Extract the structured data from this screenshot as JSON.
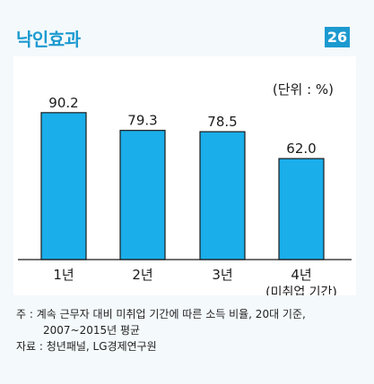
{
  "title": "낙인효과",
  "badge": "26",
  "chart_data": {
    "type": "bar",
    "categories": [
      "1년",
      "2년",
      "3년",
      "4년"
    ],
    "category_sublabels": [
      "",
      "",
      "",
      "(미취업 기간)"
    ],
    "values": [
      90.2,
      79.3,
      78.5,
      62.0
    ],
    "value_labels": [
      "90.2",
      "79.3",
      "78.5",
      "62.0"
    ],
    "unit_label": "(단위 : %)",
    "ylim": [
      0,
      100
    ],
    "grid": false,
    "bar_color": "#1aaeea",
    "bar_edge_color": "#1b1b1b"
  },
  "notes": {
    "note": "주 : 계속 근무자 대비 미취업 기간에 따른 소득 비율, 20대 기준, 2007~2015년 평균",
    "source": "자료 : 청년패널, LG경제연구원"
  },
  "colors": {
    "accent": "#1c9ad0",
    "panel_bg": "#f4f9fc"
  }
}
